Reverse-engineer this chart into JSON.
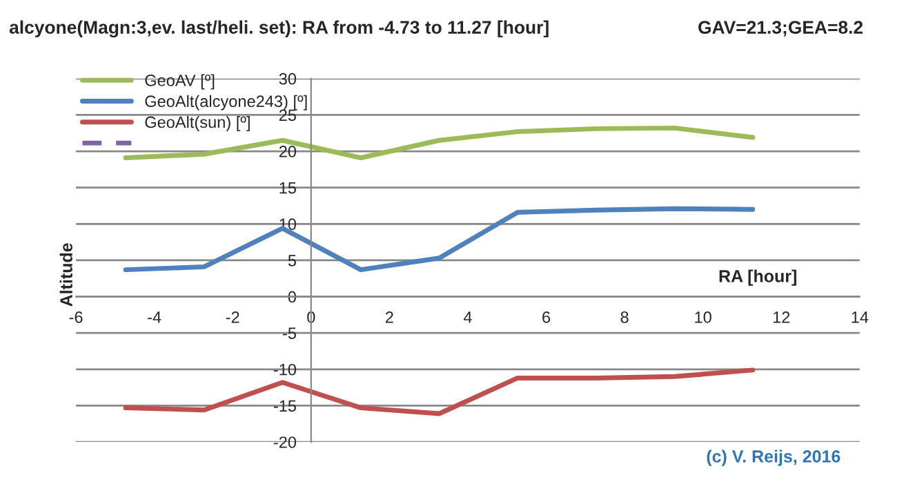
{
  "chart_data": {
    "type": "line",
    "title": "alcyone(Magn:3,ev. last/heli. set): RA from -4.73 to 11.27 [hour]",
    "xlabel": "RA [hour]",
    "ylabel": "Altitude",
    "annotations": [
      "GAV=21.3;GEA=8.2",
      "(c) V. Reijs, 2016"
    ],
    "x": [
      -4.73,
      -2.73,
      -0.73,
      1.27,
      3.27,
      5.27,
      7.27,
      9.27,
      11.27
    ],
    "series": [
      {
        "name": "GeoAV [º]",
        "color": "#9bbb59",
        "values": [
          19.1,
          19.6,
          21.5,
          19.1,
          21.5,
          22.7,
          23.1,
          23.2,
          21.9
        ]
      },
      {
        "name": "GeoAlt(alcyone243) [º]",
        "color": "#4f81bd",
        "values": [
          3.7,
          4.1,
          9.4,
          3.7,
          5.3,
          11.6,
          11.9,
          12.1,
          12.0
        ]
      },
      {
        "name": "GeoAlt(sun) [º]",
        "color": "#c0504d",
        "values": [
          -15.3,
          -15.6,
          -11.8,
          -15.3,
          -16.1,
          -11.2,
          -11.2,
          -11.0,
          -10.1
        ]
      },
      {
        "color": "#8064a2",
        "line_style": "dashed",
        "values": [
          null,
          null,
          null,
          null,
          null,
          null,
          null,
          null,
          null
        ]
      }
    ],
    "xlim": [
      -6,
      14
    ],
    "xticks": [
      -6,
      -4,
      -2,
      0,
      2,
      4,
      6,
      8,
      10,
      12,
      14
    ],
    "ylim": [
      -20,
      30
    ],
    "yticks": [
      -20,
      -15,
      -10,
      -5,
      0,
      5,
      10,
      15,
      20,
      25,
      30
    ],
    "grid": "y",
    "legend": "top left",
    "marker": "none",
    "line_style": "solid"
  }
}
